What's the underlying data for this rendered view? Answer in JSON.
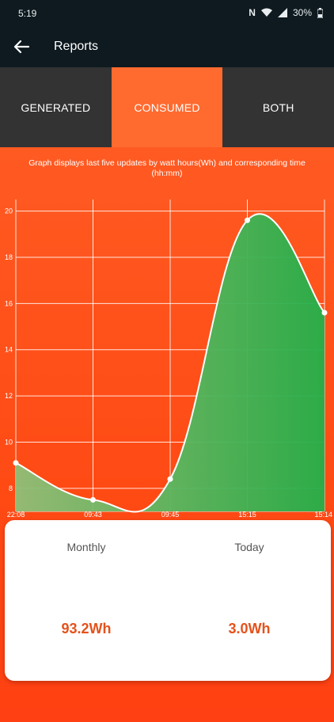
{
  "status_bar": {
    "time": "5:19",
    "battery": "30%"
  },
  "app_bar": {
    "title": "Reports"
  },
  "tabs": [
    {
      "label": "GENERATED",
      "active": false
    },
    {
      "label": "CONSUMED",
      "active": true
    },
    {
      "label": "BOTH",
      "active": false
    }
  ],
  "note": "Graph displays last five updates by watt hours(Wh) and corresponding time (hh:mm)",
  "chart_data": {
    "type": "area",
    "x": [
      "22:08",
      "09:43",
      "09:45",
      "15:15",
      "15:14"
    ],
    "values": [
      9.1,
      7.5,
      8.4,
      19.6,
      15.6
    ],
    "y_ticks": [
      "8",
      "10",
      "12",
      "14",
      "16",
      "18",
      "20"
    ],
    "ylim": [
      7,
      20.5
    ],
    "grid": true,
    "colors": {
      "line": "#ffffff",
      "fill_start": "#8fbf78",
      "fill_end": "#22b04a",
      "grid": "#ffffff"
    }
  },
  "summary": {
    "monthly": {
      "label": "Monthly",
      "value": "93.2Wh"
    },
    "today": {
      "label": "Today",
      "value": "3.0Wh"
    }
  },
  "colors": {
    "accent": "#ff6a2f",
    "tab_inactive": "#333333",
    "bar": "#0e1a1f",
    "value": "#e4521c"
  }
}
